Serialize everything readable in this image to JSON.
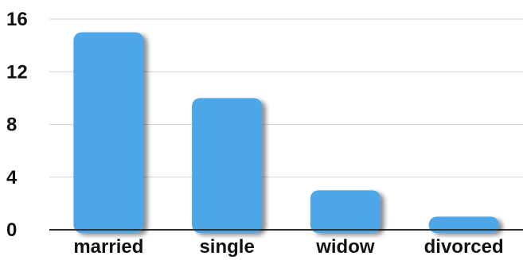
{
  "colors": {
    "bar": "#4da6e8",
    "grid": "#d2d2d2",
    "axis": "#111111"
  },
  "chart_data": {
    "type": "bar",
    "title": "",
    "xlabel": "",
    "ylabel": "",
    "categories": [
      "married",
      "single",
      "widow",
      "divorced"
    ],
    "values": [
      15,
      10,
      3,
      1
    ],
    "ylim": [
      0,
      16
    ],
    "yticks": [
      0,
      4,
      8,
      12,
      16
    ],
    "grid": true,
    "legend": "none"
  }
}
